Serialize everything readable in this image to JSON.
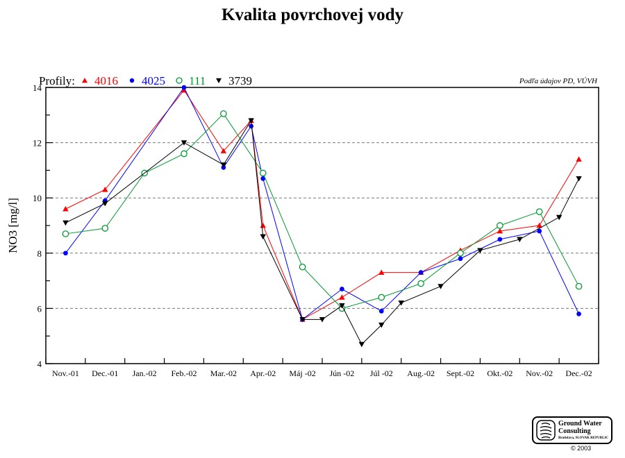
{
  "chart_data": {
    "type": "line",
    "title": "Kvalita povrchovej vody",
    "ylabel": "NO3 [mg/l]",
    "xlabel": "",
    "ylim": [
      4,
      14
    ],
    "yticks": [
      4,
      6,
      8,
      10,
      12,
      14
    ],
    "grid": "horizontal dashed at 6, 8, 10, 12",
    "categories": [
      "Nov.-01",
      "Dec.-01",
      "Jan.-02",
      "Feb.-02",
      "Mar.-02",
      "Apr.-02",
      "Máj -02",
      "Jún -02",
      "Júl -02",
      "Aug.-02",
      "Sept.-02",
      "Okt.-02",
      "Nov.-02",
      "Dec.-02"
    ],
    "legend_prefix": "Profily:",
    "legend_placement": "top-left",
    "source_note": "Podľa údajov PD, VÚVH",
    "series": [
      {
        "name": "4016",
        "color": "#ff0000",
        "marker": "triangle-up",
        "points": [
          {
            "x": 0,
            "y": 9.6
          },
          {
            "x": 1,
            "y": 10.3
          },
          {
            "x": 3,
            "y": 13.9
          },
          {
            "x": 4,
            "y": 11.7
          },
          {
            "x": 4.7,
            "y": 12.8
          },
          {
            "x": 5,
            "y": 9.0
          },
          {
            "x": 6,
            "y": 5.6
          },
          {
            "x": 7,
            "y": 6.4
          },
          {
            "x": 8,
            "y": 7.3
          },
          {
            "x": 9,
            "y": 7.3
          },
          {
            "x": 10,
            "y": 8.1
          },
          {
            "x": 11,
            "y": 8.8
          },
          {
            "x": 12,
            "y": 9.0
          },
          {
            "x": 13,
            "y": 11.4
          }
        ]
      },
      {
        "name": "4025",
        "color": "#0000ff",
        "marker": "circle-filled",
        "points": [
          {
            "x": 0,
            "y": 8.0
          },
          {
            "x": 1,
            "y": 9.9
          },
          {
            "x": 3,
            "y": 14.0
          },
          {
            "x": 4,
            "y": 11.1
          },
          {
            "x": 4.7,
            "y": 12.6
          },
          {
            "x": 5,
            "y": 10.7
          },
          {
            "x": 6,
            "y": 5.6
          },
          {
            "x": 7,
            "y": 6.7
          },
          {
            "x": 8,
            "y": 5.9
          },
          {
            "x": 9,
            "y": 7.3
          },
          {
            "x": 10,
            "y": 7.8
          },
          {
            "x": 11,
            "y": 8.5
          },
          {
            "x": 12,
            "y": 8.8
          },
          {
            "x": 13,
            "y": 5.8
          }
        ]
      },
      {
        "name": "111",
        "color": "#009933",
        "marker": "circle-open",
        "points": [
          {
            "x": 0,
            "y": 8.7
          },
          {
            "x": 1,
            "y": 8.9
          },
          {
            "x": 2,
            "y": 10.9
          },
          {
            "x": 3,
            "y": 11.6
          },
          {
            "x": 4,
            "y": 13.05
          },
          {
            "x": 5,
            "y": 10.9
          },
          {
            "x": 6,
            "y": 7.5
          },
          {
            "x": 7,
            "y": 6.0
          },
          {
            "x": 8,
            "y": 6.4
          },
          {
            "x": 9,
            "y": 6.9
          },
          {
            "x": 10,
            "y": 8.0
          },
          {
            "x": 11,
            "y": 9.0
          },
          {
            "x": 12,
            "y": 9.5
          },
          {
            "x": 13,
            "y": 6.8
          }
        ]
      },
      {
        "name": "3739",
        "color": "#000000",
        "marker": "triangle-down",
        "points": [
          {
            "x": 0,
            "y": 9.1
          },
          {
            "x": 1,
            "y": 9.8
          },
          {
            "x": 3,
            "y": 12.0
          },
          {
            "x": 4,
            "y": 11.2
          },
          {
            "x": 4.7,
            "y": 12.8
          },
          {
            "x": 5,
            "y": 8.6
          },
          {
            "x": 6,
            "y": 5.6
          },
          {
            "x": 6.5,
            "y": 5.6
          },
          {
            "x": 7,
            "y": 6.1
          },
          {
            "x": 7.5,
            "y": 4.7
          },
          {
            "x": 8,
            "y": 5.4
          },
          {
            "x": 8.5,
            "y": 6.2
          },
          {
            "x": 9.5,
            "y": 6.8
          },
          {
            "x": 10.5,
            "y": 8.1
          },
          {
            "x": 11.5,
            "y": 8.5
          },
          {
            "x": 12.5,
            "y": 9.3
          },
          {
            "x": 13,
            "y": 10.7
          }
        ]
      }
    ]
  },
  "logo": {
    "line1": "Ground Water",
    "line2": "Consulting",
    "sub": "Bratislava, SLOVAK REPUBLIC"
  },
  "copyright": "© 2003"
}
